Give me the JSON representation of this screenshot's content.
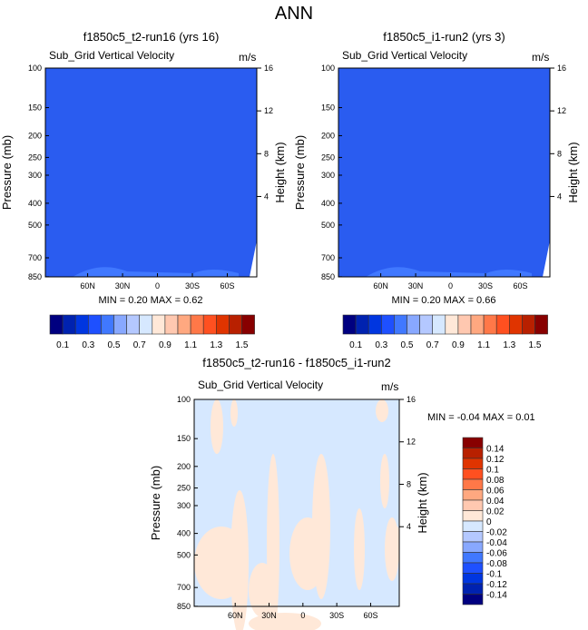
{
  "title": "ANN",
  "colors": {
    "fill_top": "#2a5cf0",
    "diff_bg": "#d6e8ff",
    "diff_pos": "#ffe8d8"
  },
  "palette": [
    "#000080",
    "#0022b0",
    "#0036e0",
    "#1e50ff",
    "#4078ff",
    "#88a8ff",
    "#b4c8ff",
    "#d6e8ff",
    "#ffe8d8",
    "#ffc8b0",
    "#ffa880",
    "#ff7848",
    "#ff5020",
    "#e03400",
    "#b82000",
    "#880000"
  ],
  "chart_data": [
    {
      "type": "heatmap",
      "title": "f1850c5_t2-run16 (yrs 16)",
      "subtitle": "Sub_Grid Vertical Velocity",
      "units": "m/s",
      "ylabel": "Pressure (mb)",
      "ylabel_right": "Height (km)",
      "yticks": [
        "100",
        "150",
        "200",
        "250",
        "300",
        "400",
        "500",
        "700",
        "850"
      ],
      "yticks_right": [
        "16",
        "12",
        "8",
        "4"
      ],
      "xticks": [
        "60N",
        "30N",
        "0",
        "30S",
        "60S"
      ],
      "stats": "MIN =   0.20  MAX =   0.62",
      "colorbar_labels": [
        "0.1",
        "0.3",
        "0.5",
        "0.7",
        "0.9",
        "1.1",
        "1.3",
        "1.5"
      ]
    },
    {
      "type": "heatmap",
      "title": "f1850c5_i1-run2 (yrs 3)",
      "subtitle": "Sub_Grid Vertical Velocity",
      "units": "m/s",
      "ylabel": "Pressure (mb)",
      "ylabel_right": "Height (km)",
      "yticks": [
        "100",
        "150",
        "200",
        "250",
        "300",
        "400",
        "500",
        "700",
        "850"
      ],
      "yticks_right": [
        "16",
        "12",
        "8",
        "4"
      ],
      "xticks": [
        "60N",
        "30N",
        "0",
        "30S",
        "60S"
      ],
      "stats": "MIN =   0.20  MAX =   0.66",
      "colorbar_labels": [
        "0.1",
        "0.3",
        "0.5",
        "0.7",
        "0.9",
        "1.1",
        "1.3",
        "1.5"
      ]
    },
    {
      "type": "heatmap",
      "title": "f1850c5_t2-run16 - f1850c5_i1-run2",
      "subtitle": "Sub_Grid Vertical Velocity",
      "units": "m/s",
      "ylabel": "Pressure (mb)",
      "ylabel_right": "Height (km)",
      "yticks": [
        "100",
        "150",
        "200",
        "250",
        "300",
        "400",
        "500",
        "700",
        "850"
      ],
      "yticks_right": [
        "16",
        "12",
        "8",
        "4"
      ],
      "xticks": [
        "60N",
        "30N",
        "0",
        "30S",
        "60S"
      ],
      "stats": "MIN =  -0.04  MAX =   0.01",
      "colorbar_labels": [
        "0.14",
        "0.12",
        "0.1",
        "0.08",
        "0.06",
        "0.04",
        "0.02",
        "0",
        "-0.02",
        "-0.04",
        "-0.06",
        "-0.08",
        "-0.1",
        "-0.12",
        "-0.14"
      ]
    }
  ]
}
